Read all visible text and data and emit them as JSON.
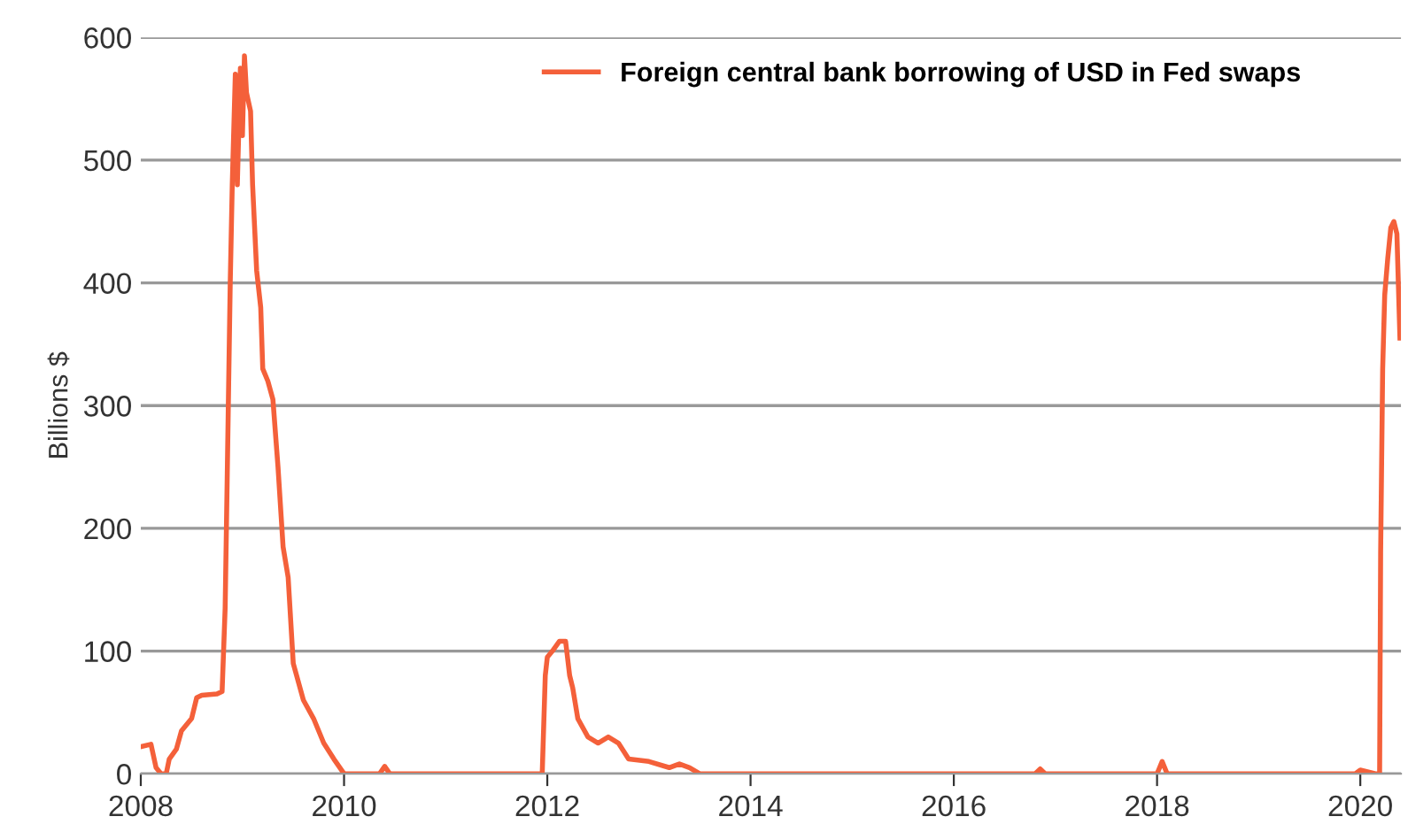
{
  "chart_data": {
    "type": "line",
    "ylabel": "Billions $",
    "xlim": [
      2008,
      2020.4
    ],
    "xticks": [
      2008,
      2010,
      2012,
      2014,
      2016,
      2018,
      2020
    ],
    "ylim": [
      0,
      600
    ],
    "yticks": [
      0,
      100,
      200,
      300,
      400,
      500,
      600
    ],
    "grid": "y",
    "legend": "top right",
    "marker": "none",
    "line_style": "solid",
    "series": [
      {
        "name": "Foreign central bank borrowing of USD in Fed swaps",
        "color": "#f4603a",
        "x": [
          2008.0,
          2008.1,
          2008.15,
          2008.2,
          2008.25,
          2008.28,
          2008.35,
          2008.4,
          2008.5,
          2008.55,
          2008.6,
          2008.75,
          2008.8,
          2008.83,
          2008.85,
          2008.88,
          2008.9,
          2008.93,
          2008.95,
          2008.98,
          2009.0,
          2009.02,
          2009.04,
          2009.08,
          2009.1,
          2009.14,
          2009.18,
          2009.2,
          2009.25,
          2009.3,
          2009.35,
          2009.4,
          2009.45,
          2009.5,
          2009.55,
          2009.6,
          2009.7,
          2009.8,
          2009.9,
          2010.0,
          2010.35,
          2010.4,
          2010.45,
          2011.95,
          2011.98,
          2012.0,
          2012.05,
          2012.12,
          2012.18,
          2012.22,
          2012.25,
          2012.3,
          2012.4,
          2012.5,
          2012.6,
          2012.7,
          2012.8,
          2013.0,
          2013.2,
          2013.3,
          2013.4,
          2013.5,
          2016.8,
          2016.85,
          2016.9,
          2018.0,
          2018.05,
          2018.1,
          2019.95,
          2020.0,
          2020.15,
          2020.19,
          2020.2,
          2020.22,
          2020.24,
          2020.27,
          2020.3,
          2020.33,
          2020.36,
          2020.39
        ],
        "values": [
          22,
          24,
          5,
          0,
          0,
          12,
          20,
          35,
          45,
          62,
          64,
          65,
          67,
          135,
          240,
          400,
          480,
          570,
          480,
          575,
          520,
          585,
          555,
          540,
          480,
          410,
          380,
          330,
          320,
          305,
          250,
          185,
          160,
          90,
          75,
          60,
          45,
          25,
          12,
          0,
          0,
          6,
          0,
          0,
          80,
          95,
          100,
          108,
          108,
          80,
          70,
          45,
          30,
          25,
          30,
          25,
          12,
          10,
          5,
          8,
          5,
          0,
          0,
          4,
          0,
          0,
          10,
          0,
          0,
          3,
          0,
          0,
          180,
          330,
          390,
          420,
          445,
          450,
          440,
          355
        ]
      }
    ]
  }
}
